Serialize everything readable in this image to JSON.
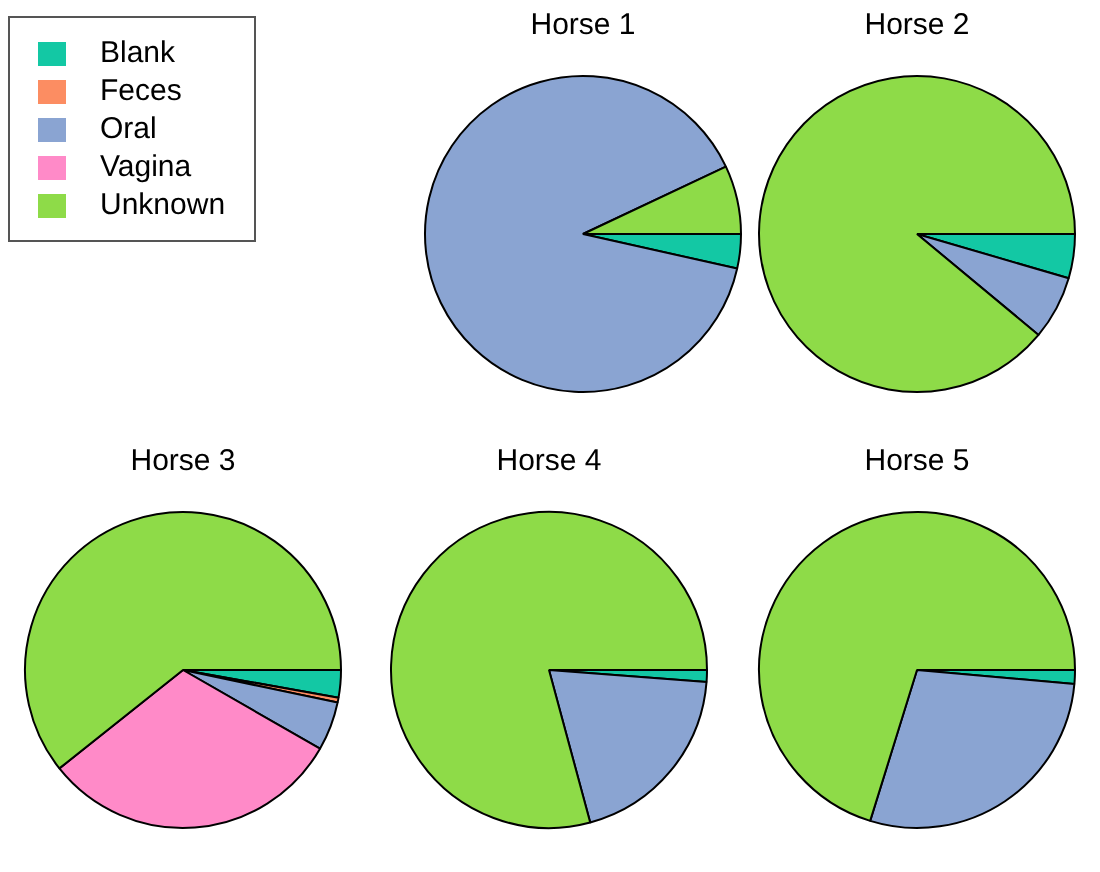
{
  "chart_data": [
    {
      "type": "pie",
      "title": "Horse 1",
      "legend": "top left",
      "categories": [
        "Blank",
        "Feces",
        "Oral",
        "Vagina",
        "Unknown"
      ],
      "values": [
        3.5,
        null,
        89.3,
        0,
        7
      ],
      "colors": [
        "#13c8a4",
        "#fc8d62",
        "#8aa4d2",
        "#ff8ac8",
        "#8edb48"
      ]
    },
    {
      "type": "pie",
      "title": "Horse 2",
      "categories": [
        null,
        null,
        null,
        null,
        null
      ],
      "values": [
        4.5,
        null,
        6.5,
        0,
        88.7
      ],
      "colors": [
        "#13c8a4",
        "#fc8d62",
        "#8aa4d2",
        "#ff8ac8",
        "#8edb48"
      ]
    },
    {
      "type": "pie",
      "title": "Horse 3",
      "categories": [
        null,
        null,
        null,
        null,
        null
      ],
      "values": [
        2.8,
        0.5,
        5,
        31,
        60.7
      ],
      "colors": [
        "#13c8a4",
        "#fc8d62",
        "#8aa4d2",
        "#ff8ac8",
        "#8edb48"
      ]
    },
    {
      "type": "pie",
      "title": "Horse 4",
      "categories": [
        null,
        null,
        null,
        null,
        null
      ],
      "values": [
        1.2,
        0,
        19.6,
        0,
        79.2
      ],
      "colors": [
        "#13c8a4",
        "#fc8d62",
        "#8aa4d2",
        "#ff8ac8",
        "#8edb48"
      ]
    },
    {
      "type": "pie",
      "title": "Horse 5",
      "categories": [
        null,
        null,
        null,
        null,
        null
      ],
      "values": [
        1.4,
        0,
        28.3,
        null,
        70
      ],
      "colors": [
        "#13c8a4",
        "#fc8d62",
        "#8aa4d2",
        "#ff8ac8",
        "#8edb48"
      ]
    }
  ]
}
